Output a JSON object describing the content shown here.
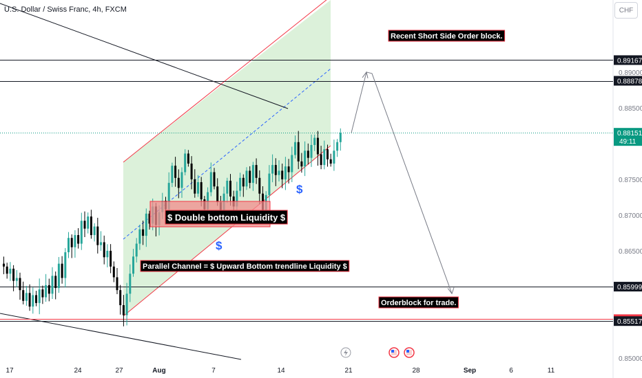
{
  "header": {
    "title": "U.S. Dollar / Swiss Franc, 4h, FXCM",
    "currency": "CHF"
  },
  "price_axis": {
    "ticks": [
      "0.89000",
      "0.88500",
      "0.87500",
      "0.87000",
      "0.86500",
      "0.85000"
    ],
    "tick_values": [
      0.89,
      0.885,
      0.875,
      0.87,
      0.865,
      0.85
    ],
    "level_labels": [
      {
        "text": "0.89167",
        "value": 0.89167,
        "style": "dark"
      },
      {
        "text": "0.88878",
        "value": 0.88878,
        "style": "dark"
      },
      {
        "text": "0.88151",
        "value": 0.88151,
        "style": "green",
        "sub": "49:11"
      },
      {
        "text": "0.85999",
        "value": 0.85999,
        "style": "dark"
      },
      {
        "text": "0.85544",
        "value": 0.85544,
        "style": "red"
      },
      {
        "text": "0.85517",
        "value": 0.85517,
        "style": "dark"
      }
    ]
  },
  "time_axis": {
    "labels": [
      {
        "text": "17",
        "bold": false
      },
      {
        "text": "24",
        "bold": false
      },
      {
        "text": "27",
        "bold": false
      },
      {
        "text": "Aug",
        "bold": true
      },
      {
        "text": "7",
        "bold": false
      },
      {
        "text": "14",
        "bold": false
      },
      {
        "text": "21",
        "bold": false
      },
      {
        "text": "28",
        "bold": false
      },
      {
        "text": "Sep",
        "bold": true
      },
      {
        "text": "6",
        "bold": false
      },
      {
        "text": "11",
        "bold": false
      }
    ]
  },
  "annotations": {
    "recent_block": "Recent Short Side Order block.",
    "double_bottom": "$ Double bottom Liquidity $",
    "parallel_channel": "Parallel Channel =  $ Upward Bottom trendline Liquidity $",
    "orderblock_trade": "Orderblock for trade.",
    "dollar_sign": "$"
  },
  "colors": {
    "up": "#26a69a",
    "down": "#000000",
    "channel_fill": "#d6efd4",
    "channel_line": "#f23645",
    "midline": "#2962ff",
    "label_bg": "#000000",
    "label_border": "#f23645",
    "current_price": "#089981",
    "double_bottom_box": "#f28b8b"
  },
  "chart_data": {
    "type": "candlestick",
    "symbol": "U.S. Dollar / Swiss Franc",
    "timeframe": "4h",
    "source": "FXCM",
    "ylim": [
      0.85,
      0.8935
    ],
    "x_labels": [
      "17",
      "24",
      "27",
      "Aug",
      "7",
      "14",
      "21",
      "28",
      "Sep",
      "6",
      "11"
    ],
    "horizontal_levels": [
      0.89167,
      0.88878,
      0.85999,
      0.85544,
      0.85517
    ],
    "last_price": 0.88151,
    "close_path": [
      0.8628,
      0.8618,
      0.8625,
      0.8608,
      0.8612,
      0.8595,
      0.858,
      0.8591,
      0.8572,
      0.8588,
      0.8577,
      0.8596,
      0.8585,
      0.8602,
      0.859,
      0.8615,
      0.8598,
      0.8632,
      0.8612,
      0.8648,
      0.8668,
      0.8655,
      0.8672,
      0.866,
      0.8692,
      0.8681,
      0.8698,
      0.8672,
      0.8684,
      0.8658,
      0.8662,
      0.8641,
      0.865,
      0.8628,
      0.8613,
      0.8595,
      0.8574,
      0.856,
      0.859,
      0.8618,
      0.8642,
      0.866,
      0.868,
      0.8671,
      0.8702,
      0.8688,
      0.8712,
      0.8686,
      0.8704,
      0.872,
      0.8708,
      0.8745,
      0.8769,
      0.8752,
      0.8738,
      0.876,
      0.8786,
      0.8772,
      0.875,
      0.873,
      0.8746,
      0.8722,
      0.8708,
      0.8732,
      0.876,
      0.874,
      0.8718,
      0.8706,
      0.873,
      0.8748,
      0.8726,
      0.8712,
      0.8734,
      0.8752,
      0.874,
      0.8762,
      0.8745,
      0.877,
      0.8752,
      0.873,
      0.8702,
      0.8728,
      0.8758,
      0.877,
      0.8756,
      0.8762,
      0.875,
      0.8768,
      0.876,
      0.8784,
      0.8802,
      0.8775,
      0.8768,
      0.879,
      0.878,
      0.8798,
      0.8808,
      0.8785,
      0.877,
      0.8792,
      0.8778,
      0.8772,
      0.879,
      0.8802,
      0.8815
    ],
    "projection": [
      0.8815,
      0.8898,
      0.859
    ]
  }
}
